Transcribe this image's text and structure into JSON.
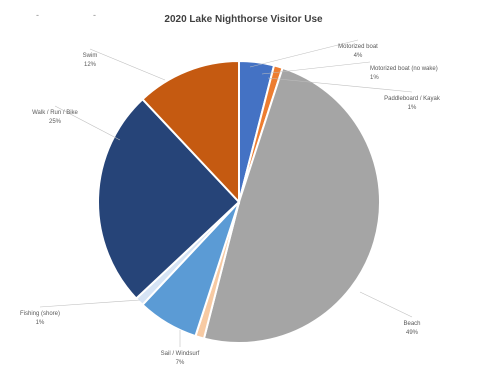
{
  "chart_data": {
    "type": "pie",
    "title": "2020 Lake Nighthorse Visitor Use",
    "slices": [
      {
        "label": "Motorized boat",
        "value": 4,
        "value_label": "4%",
        "color": "#4472c4"
      },
      {
        "label": "Motorized boat (no wake)",
        "value": 1,
        "value_label": "1%",
        "color": "#ed7d31"
      },
      {
        "label": "Beach",
        "value": 49,
        "value_label": "49%",
        "color": "#a5a5a5"
      },
      {
        "label": "Paddleboard / Kayak",
        "value": 1,
        "value_label": "1%",
        "color": "#f7caa3"
      },
      {
        "label": "Sail / Windsurf",
        "value": 7,
        "value_label": "7%",
        "color": "#5b9bd5"
      },
      {
        "label": "Fishing (shore)",
        "value": 1,
        "value_label": "1%",
        "color": "#d6e4f5"
      },
      {
        "label": "Walk / Run / Bike",
        "value": 25,
        "value_label": "25%",
        "color": "#264478"
      },
      {
        "label": "Swim",
        "value": 12,
        "value_label": "12%",
        "color": "#c55a11"
      }
    ]
  },
  "edge_marks": {
    "left": "-",
    "left2": "-"
  }
}
